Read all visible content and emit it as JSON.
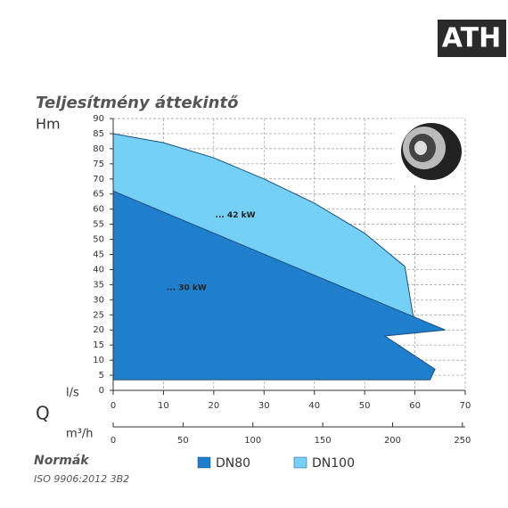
{
  "logo": "ATH",
  "chart_data": {
    "type": "area",
    "title": "Teljesítmény áttekintő",
    "y_label": "Hm",
    "x_label": "l/s",
    "q_label": "Q",
    "x2_label": "m³/h",
    "xlim": [
      0,
      70
    ],
    "xticks": [
      0,
      10,
      20,
      30,
      40,
      50,
      60,
      70
    ],
    "x2lim": [
      0,
      252
    ],
    "x2ticks": [
      0,
      50,
      100,
      150,
      200,
      250
    ],
    "ylim": [
      0,
      90
    ],
    "yticks": [
      0,
      5,
      10,
      15,
      20,
      25,
      30,
      35,
      40,
      45,
      50,
      55,
      60,
      65,
      70,
      75,
      80,
      85,
      90
    ],
    "grid": true,
    "legend": "bottom",
    "series": [
      {
        "name": "DN80",
        "color": "#1f7fcc",
        "x": [
          0,
          66,
          54,
          64,
          63,
          0
        ],
        "values": [
          66,
          20,
          18,
          7,
          3.5,
          3.5
        ]
      },
      {
        "name": "DN100",
        "color": "#74d0f4",
        "x": [
          0,
          10,
          20,
          30,
          40,
          50,
          58,
          60,
          0
        ],
        "values": [
          85,
          82,
          77,
          70,
          62,
          52,
          41,
          21,
          66
        ]
      }
    ],
    "annotations": [
      {
        "text": "... 42 kW",
        "x": 20.3,
        "y": 58
      },
      {
        "text": "... 30 kW",
        "x": 10.6,
        "y": 34
      }
    ]
  },
  "footer": {
    "heading": "Normák",
    "standard": "ISO 9906:2012 3B2"
  }
}
